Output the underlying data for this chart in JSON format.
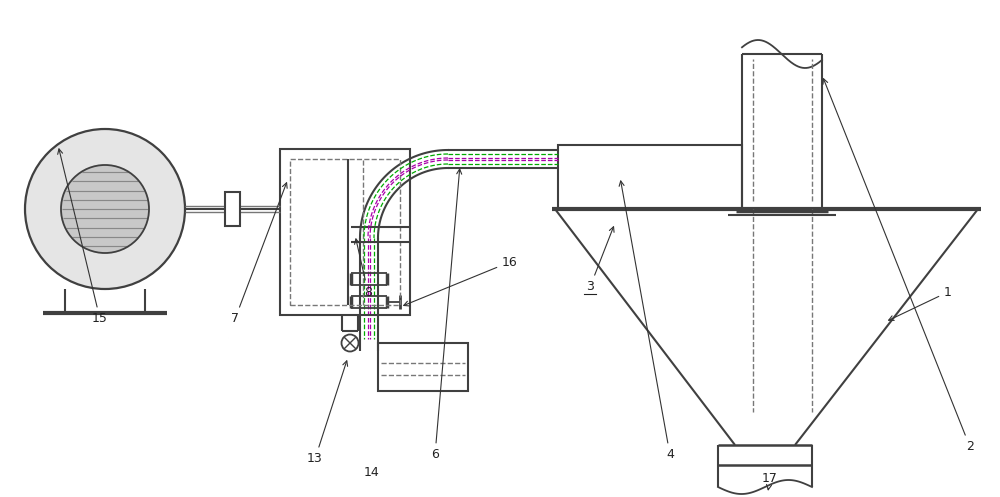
{
  "bg": "#ffffff",
  "lc": "#404040",
  "dc": "#777777",
  "gc": "#00aa00",
  "pc": "#aa00aa",
  "fs": 9,
  "figw": 10.0,
  "figh": 4.97,
  "dpi": 100,
  "xlim": [
    0,
    10
  ],
  "ylim": [
    0,
    4.97
  ]
}
